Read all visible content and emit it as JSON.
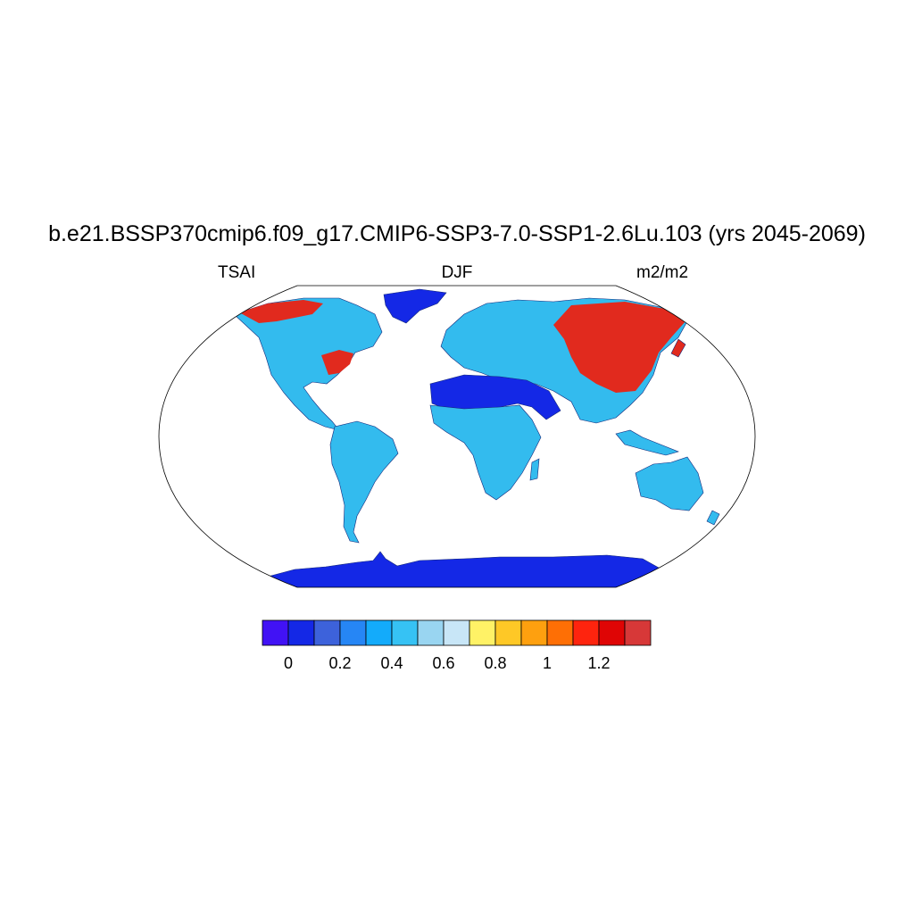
{
  "title": "b.e21.BSSP370cmip6.f09_g17.CMIP6-SSP3-7.0-SSP1-2.6Lu.103 (yrs 2045-2069)",
  "left_label": "TSAI",
  "center_label": "DJF",
  "right_label": "m2/m2",
  "map": {
    "projection": "robinson",
    "ocean_color": "#ffffff",
    "land_regions": [
      {
        "name": "Antarctica",
        "color": "#1428e6"
      },
      {
        "name": "Greenland",
        "color": "#1428e6"
      },
      {
        "name": "Sahara and Arabia",
        "color": "#1428e6"
      },
      {
        "name": "North America",
        "color": "#33bbee"
      },
      {
        "name": "South America",
        "color": "#33bbee"
      },
      {
        "name": "Africa",
        "color": "#33bbee"
      },
      {
        "name": "Eurasia",
        "color": "#33bbee"
      },
      {
        "name": "Australia",
        "color": "#33bbee"
      },
      {
        "name": "Siberia",
        "color": "#e12a1e"
      },
      {
        "name": "Canada",
        "color": "#e12a1e"
      }
    ]
  },
  "colorbar": {
    "colors": [
      "#4112f5",
      "#1428e6",
      "#3d62db",
      "#2686f5",
      "#13abfb",
      "#36c2f4",
      "#99d5f1",
      "#c8e6f7",
      "#fff266",
      "#fec826",
      "#fea00f",
      "#fe6f05",
      "#fe240e",
      "#df0505",
      "#d73838"
    ],
    "tick_labels": [
      "0",
      "0.2",
      "0.4",
      "0.6",
      "0.8",
      "1",
      "1.2"
    ]
  }
}
